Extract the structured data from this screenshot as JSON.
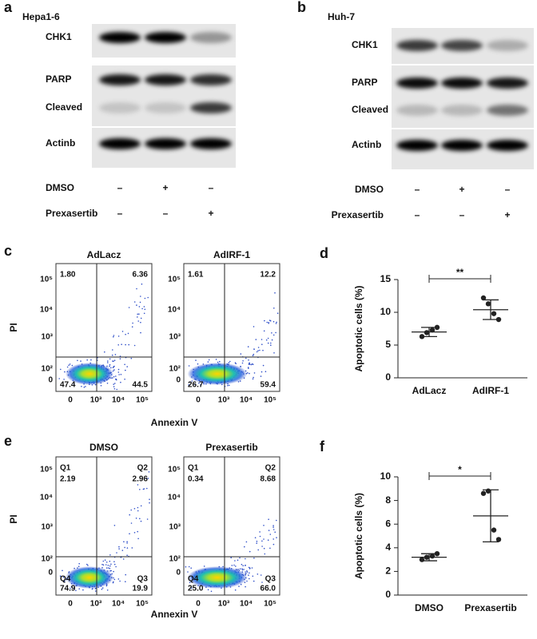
{
  "blots": [
    {
      "label": "a",
      "cell_line": "Hepa1-6",
      "bands": [
        "CHK1",
        "PARP",
        "Cleaved",
        "Actinb"
      ],
      "conditions": [
        {
          "name": "DMSO",
          "signs": [
            "–",
            "+",
            "–"
          ]
        },
        {
          "name": "Prexasertib",
          "signs": [
            "–",
            "–",
            "+"
          ]
        }
      ]
    },
    {
      "label": "b",
      "cell_line": "Huh-7",
      "bands": [
        "CHK1",
        "PARP",
        "Cleaved",
        "Actinb"
      ],
      "conditions": [
        {
          "name": "DMSO",
          "signs": [
            "–",
            "+",
            "–"
          ]
        },
        {
          "name": "Prexasertib",
          "signs": [
            "–",
            "–",
            "+"
          ]
        }
      ]
    }
  ],
  "flow": [
    {
      "label": "c",
      "y_label": "PI",
      "x_label": "Annexin V",
      "yticks": [
        "10⁵",
        "10⁴",
        "10³",
        "10²",
        "0"
      ],
      "xticks": [
        "0",
        "10³",
        "10⁴",
        "10⁵"
      ],
      "plots": [
        {
          "title": "AdLacz",
          "quadrants": [
            {
              "value": "1.80"
            },
            {
              "value": "6.36"
            },
            {
              "value": "47.4"
            },
            {
              "value": "44.5"
            }
          ]
        },
        {
          "title": "AdIRF-1",
          "quadrants": [
            {
              "value": "1.61"
            },
            {
              "value": "12.2"
            },
            {
              "value": "26.7"
            },
            {
              "value": "59.4"
            }
          ]
        }
      ]
    },
    {
      "label": "e",
      "y_label": "PI",
      "x_label": "Annexin V",
      "yticks": [
        "10⁵",
        "10⁴",
        "10³",
        "10²",
        "0"
      ],
      "xticks": [
        "0",
        "10³",
        "10⁴",
        "10⁵"
      ],
      "plots": [
        {
          "title": "DMSO",
          "quadrants": [
            {
              "name": "Q1",
              "value": "2.19"
            },
            {
              "name": "Q2",
              "value": "2.96"
            },
            {
              "name": "Q4",
              "value": "74.9"
            },
            {
              "name": "Q3",
              "value": "19.9"
            }
          ]
        },
        {
          "title": "Prexasertib",
          "quadrants": [
            {
              "name": "Q1",
              "value": "0.34"
            },
            {
              "name": "Q2",
              "value": "8.68"
            },
            {
              "name": "Q4",
              "value": "25.0"
            },
            {
              "name": "Q3",
              "value": "66.0"
            }
          ]
        }
      ]
    }
  ],
  "chart_data": [
    {
      "type": "dot",
      "label": "d",
      "y_label": "Apoptotic cells (%)",
      "categories": [
        "AdLacz",
        "AdIRF-1"
      ],
      "points": [
        [
          6.3,
          6.9,
          7.3,
          7.7
        ],
        [
          12.2,
          11.3,
          9.8,
          8.9
        ]
      ],
      "means": [
        7.0,
        10.4
      ],
      "sds": [
        0.7,
        1.5
      ],
      "significance": "**",
      "color": "#222222",
      "ylim": [
        0,
        15
      ],
      "yticks": [
        0,
        5,
        10,
        15
      ]
    },
    {
      "type": "dot",
      "label": "f",
      "y_label": "Apoptotic cells (%)",
      "categories": [
        "DMSO",
        "Prexasertib"
      ],
      "points": [
        [
          3.0,
          3.2,
          3.3,
          3.5
        ],
        [
          8.6,
          8.8,
          5.5,
          4.7
        ]
      ],
      "means": [
        3.2,
        6.7
      ],
      "sds": [
        0.3,
        2.2
      ],
      "significance": "*",
      "color": "#222222",
      "ylim": [
        0,
        10
      ],
      "yticks": [
        0,
        2,
        4,
        6,
        8,
        10
      ]
    }
  ]
}
